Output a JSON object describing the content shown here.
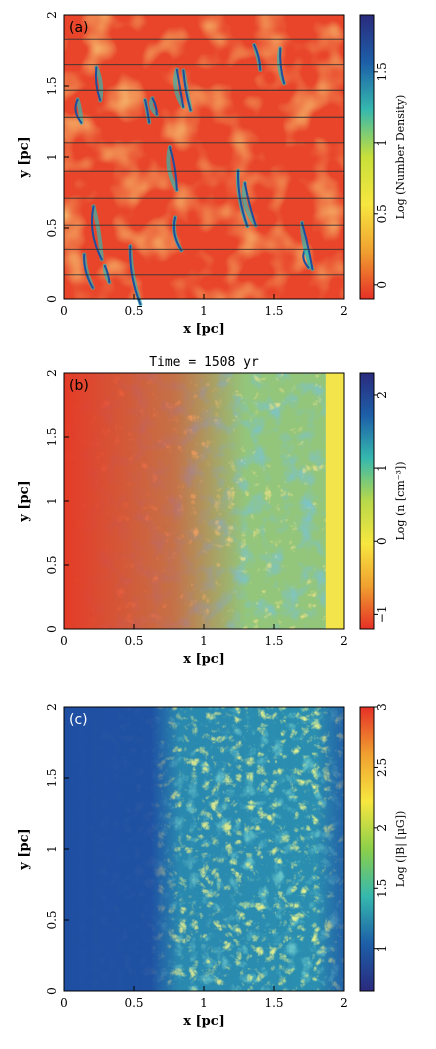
{
  "chart_data": [
    {
      "type": "heatmap",
      "panel_label": "(a)",
      "title": "",
      "xlabel": "x [pc]",
      "ylabel": "y [pc]",
      "xlim": [
        0,
        2
      ],
      "ylim": [
        0,
        2
      ],
      "x_ticks": [
        "0",
        "0.5",
        "1",
        "1.5",
        "2"
      ],
      "y_ticks": [
        "0",
        "0.5",
        "1",
        "1.5",
        "2"
      ],
      "colorbar": {
        "label": "Log (Number Density)",
        "range": [
          -0.1,
          1.9
        ],
        "ticks": [
          "0",
          "0.5",
          "1",
          "1.5"
        ],
        "colormap": [
          "#e63027",
          "#f0a030",
          "#f7e740",
          "#c8df3a",
          "#35b8ae",
          "#1d5fa8",
          "#2a2a7d"
        ]
      },
      "horizontal_lines_y": [
        0.17,
        0.35,
        0.52,
        0.71,
        0.9,
        1.1,
        1.28,
        1.47,
        1.65,
        1.83
      ]
    },
    {
      "type": "heatmap",
      "panel_label": "(b)",
      "title": "Time = 1508 yr",
      "xlabel": "x [pc]",
      "ylabel": "y [pc]",
      "xlim": [
        0,
        2
      ],
      "ylim": [
        0,
        2
      ],
      "x_ticks": [
        "0",
        "0.5",
        "1",
        "1.5",
        "2"
      ],
      "y_ticks": [
        "0",
        "0.5",
        "1",
        "1.5",
        "2"
      ],
      "colorbar": {
        "label": "Log (n [cm⁻³])",
        "range": [
          -1.2,
          2.3
        ],
        "ticks": [
          "−1",
          "0",
          "1",
          "2"
        ],
        "colormap": [
          "#e63027",
          "#f0a030",
          "#f7e740",
          "#b8d84a",
          "#35b8ae",
          "#1d5fa8",
          "#2a2a7d"
        ]
      }
    },
    {
      "type": "heatmap",
      "panel_label": "(c)",
      "title": "",
      "xlabel": "x [pc]",
      "ylabel": "y [pc]",
      "xlim": [
        0,
        2
      ],
      "ylim": [
        0,
        2
      ],
      "x_ticks": [
        "0",
        "0.5",
        "1",
        "1.5",
        "2"
      ],
      "y_ticks": [
        "0",
        "0.5",
        "1",
        "1.5",
        "2"
      ],
      "colorbar": {
        "label": "Log (|B| [μG])",
        "range": [
          0.65,
          3.0
        ],
        "ticks": [
          "1",
          "1.5",
          "2",
          "2.5",
          "3"
        ],
        "colormap": [
          "#2a2a7d",
          "#1d5fa8",
          "#35b8ae",
          "#8ccf4a",
          "#f7e740",
          "#f0a030",
          "#e63027"
        ]
      }
    }
  ]
}
